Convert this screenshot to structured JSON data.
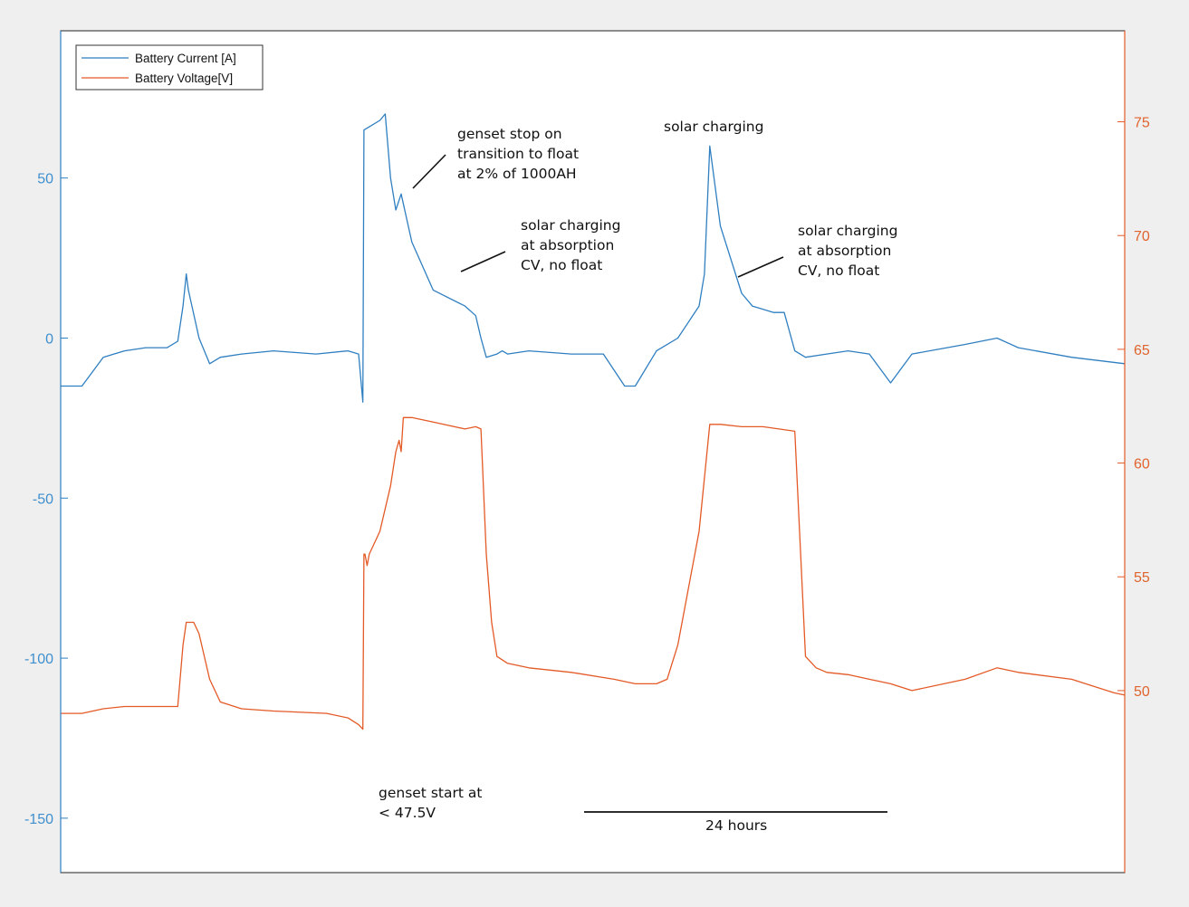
{
  "chart_data": {
    "type": "line",
    "title": "",
    "xlabel": "",
    "ylabel_left": "",
    "ylabel_right": "",
    "x_range": [
      0,
      1000
    ],
    "y_left": {
      "range": [
        -167,
        96
      ],
      "ticks": [
        50,
        0,
        -50,
        -100,
        -150
      ],
      "color": "#2f7fc1"
    },
    "y_right": {
      "range": [
        42,
        79
      ],
      "ticks": [
        75,
        70,
        65,
        60,
        55,
        50
      ],
      "color": "#e35a26"
    },
    "grid": false,
    "legend": {
      "placement": "top-left",
      "entries": [
        "Battery Current [A]",
        "Battery Voltage[V]"
      ]
    },
    "series": [
      {
        "name": "Battery Current [A]",
        "axis": "left",
        "color": "#2f7fc1",
        "x": [
          0,
          20,
          40,
          60,
          80,
          100,
          110,
          115,
          118,
          120,
          130,
          140,
          150,
          170,
          200,
          240,
          270,
          280,
          284,
          285,
          290,
          300,
          305,
          310,
          315,
          320,
          330,
          350,
          380,
          390,
          395,
          400,
          410,
          415,
          420,
          440,
          480,
          510,
          530,
          540,
          560,
          580,
          590,
          600,
          605,
          610,
          620,
          640,
          650,
          660,
          670,
          680,
          690,
          700,
          720,
          740,
          760,
          780,
          800,
          850,
          880,
          900,
          950,
          1000
        ],
        "y": [
          -15,
          -15,
          -6,
          -4,
          -3,
          -3,
          -1,
          10,
          20,
          15,
          0,
          -8,
          -6,
          -5,
          -4,
          -5,
          -4,
          -5,
          -20,
          65,
          66,
          68,
          70,
          50,
          40,
          45,
          30,
          15,
          10,
          7,
          0,
          -6,
          -5,
          -4,
          -5,
          -4,
          -5,
          -5,
          -15,
          -15,
          -4,
          0,
          5,
          10,
          20,
          60,
          35,
          14,
          10,
          9,
          8,
          8,
          -4,
          -6,
          -5,
          -4,
          -5,
          -14,
          -5,
          -2,
          0,
          -3,
          -6,
          -8
        ]
      },
      {
        "name": "Battery Voltage[V]",
        "axis": "right",
        "color": "#e35a26",
        "x": [
          0,
          20,
          40,
          60,
          80,
          100,
          110,
          115,
          118,
          125,
          130,
          140,
          150,
          170,
          200,
          250,
          270,
          280,
          284,
          285,
          286,
          288,
          290,
          300,
          310,
          315,
          318,
          320,
          322,
          330,
          350,
          380,
          390,
          395,
          400,
          405,
          410,
          420,
          440,
          480,
          520,
          540,
          560,
          570,
          580,
          600,
          610,
          620,
          640,
          660,
          690,
          700,
          710,
          720,
          740,
          760,
          780,
          800,
          850,
          880,
          900,
          950,
          990,
          1000
        ],
        "y": [
          49,
          49,
          49.2,
          49.3,
          49.3,
          49.3,
          49.3,
          52,
          53,
          53,
          52.5,
          50.5,
          49.5,
          49.2,
          49.1,
          49,
          48.8,
          48.5,
          48.3,
          56,
          56,
          55.5,
          56,
          57,
          59,
          60.5,
          61,
          60.5,
          62,
          62,
          61.8,
          61.5,
          61.6,
          61.5,
          56,
          53,
          51.5,
          51.2,
          51,
          50.8,
          50.5,
          50.3,
          50.3,
          50.5,
          52,
          57,
          61.7,
          61.7,
          61.6,
          61.6,
          61.4,
          51.5,
          51,
          50.8,
          50.7,
          50.5,
          50.3,
          50,
          50.5,
          51,
          50.8,
          50.5,
          49.9,
          49.8
        ]
      }
    ],
    "annotations": [
      {
        "lines": [
          "genset stop on",
          "transition to float",
          "at 2% of 1000AH"
        ]
      },
      {
        "lines": [
          "solar charging"
        ]
      },
      {
        "lines": [
          "solar charging",
          "at absorption",
          "CV, no float"
        ]
      },
      {
        "lines": [
          "solar charging",
          "at absorption",
          "CV, no float"
        ]
      },
      {
        "lines": [
          "genset start at",
          "< 47.5V"
        ]
      },
      {
        "lines": [
          "24 hours"
        ]
      }
    ]
  }
}
